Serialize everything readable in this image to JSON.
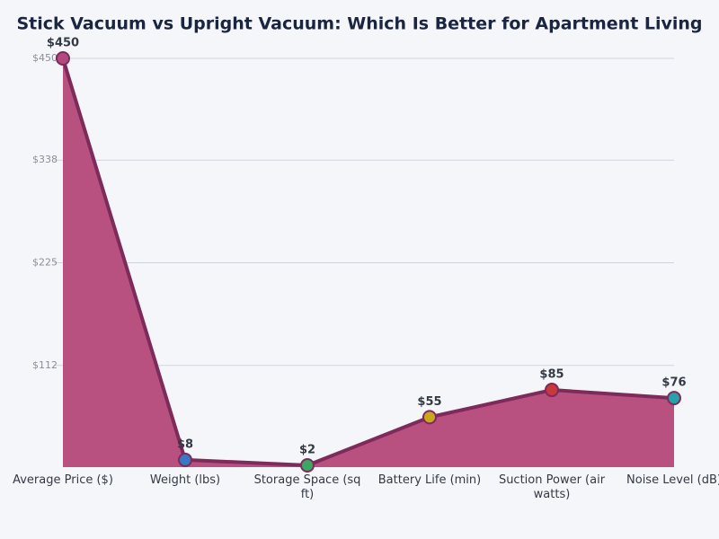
{
  "chart_data": {
    "type": "area",
    "title": "Stick Vacuum vs Upright Vacuum: Which Is Better for Apartment Living",
    "categories": [
      "Average Price ($)",
      "Weight (lbs)",
      "Storage Space (sq ft)",
      "Battery Life (min)",
      "Suction Power (air watts)",
      "Noise Level (dB)"
    ],
    "values": [
      450,
      8,
      2,
      55,
      85,
      76
    ],
    "value_labels": [
      "$450",
      "$8",
      "$2",
      "$55",
      "$85",
      "$76"
    ],
    "color": "#b8517f",
    "line_color": "#7d2b5a",
    "point_colors": [
      "#b24a80",
      "#3b78c4",
      "#3aa864",
      "#c9a820",
      "#c9383c",
      "#2aa0a8"
    ],
    "ylim": [
      0,
      450
    ],
    "yticks": [
      {
        "value": 112,
        "label": "$112"
      },
      {
        "value": 225,
        "label": "$225"
      },
      {
        "value": 338,
        "label": "$338"
      },
      {
        "value": 450,
        "label": "$450"
      }
    ],
    "grid": true
  }
}
